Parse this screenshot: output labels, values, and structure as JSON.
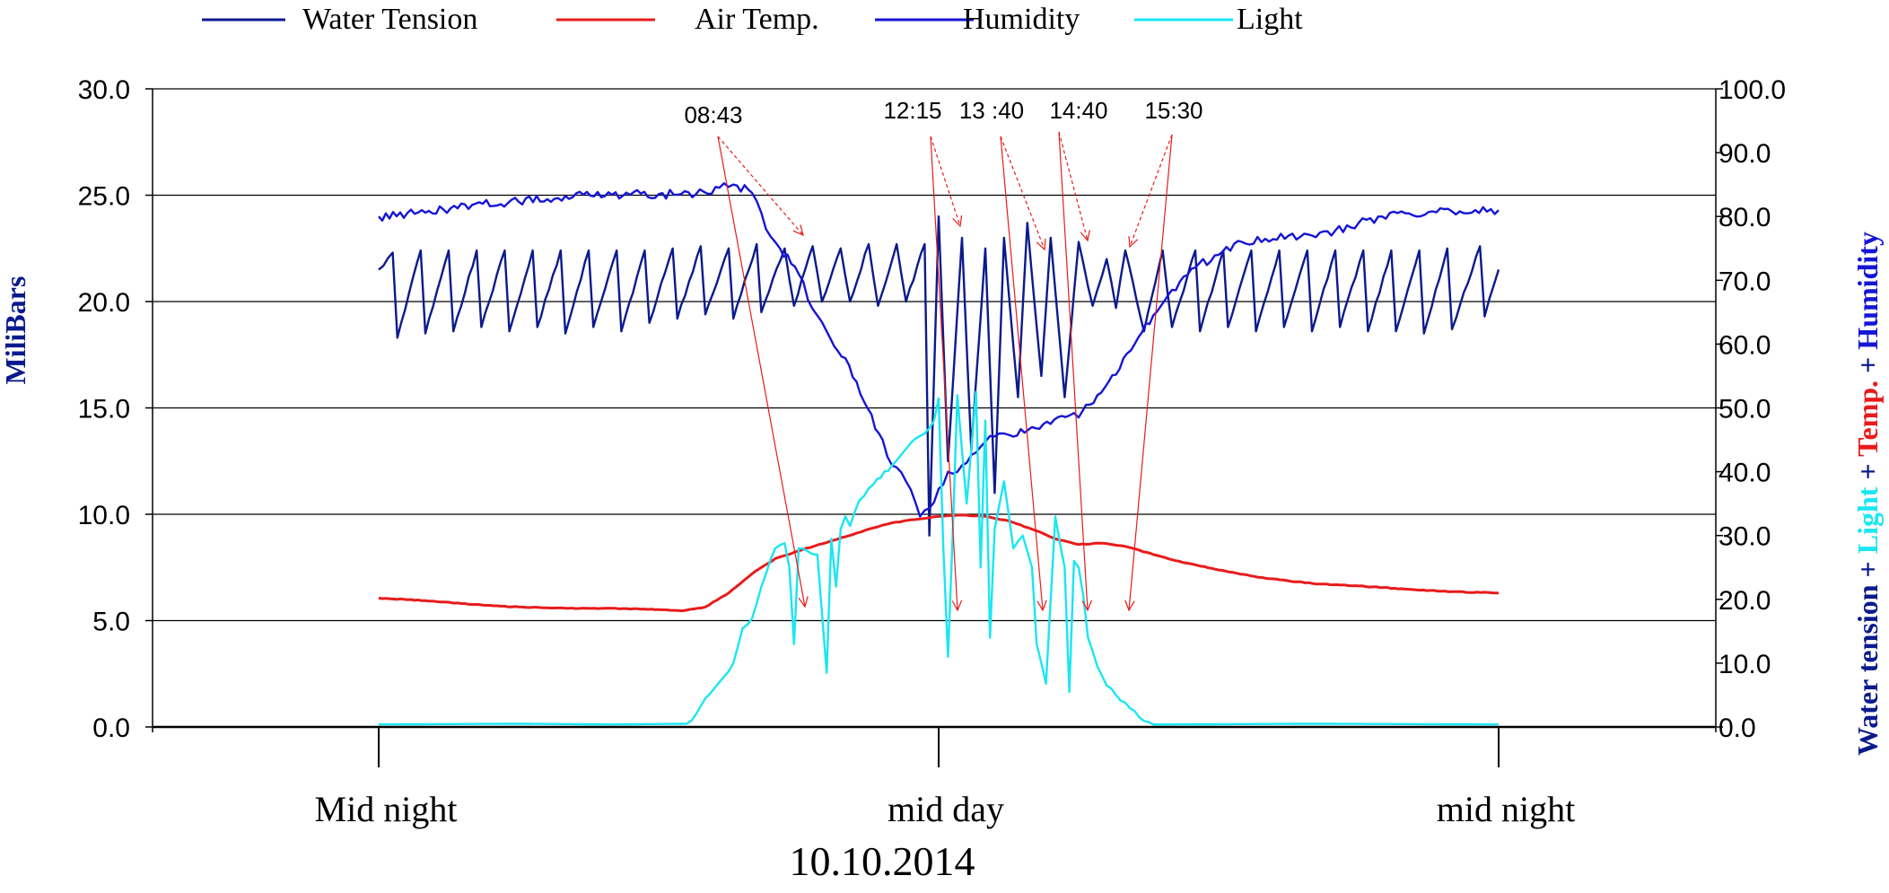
{
  "chart_data": {
    "type": "line",
    "x_date": "10.10.2014",
    "x_tick_labels": [
      "Mid night",
      "mid day",
      "mid night"
    ],
    "ylabel_left": "MiliBars",
    "ylabel_right_parts": [
      {
        "text": "Water tension",
        "color": "#0b1a8c"
      },
      {
        "text": " + ",
        "color": "#0b1a8c"
      },
      {
        "text": "Light",
        "color": "#19e6f2"
      },
      {
        "text": " + ",
        "color": "#0b1a8c"
      },
      {
        "text": "Temp.",
        "color": "#e81b1b"
      },
      {
        "text": " + ",
        "color": "#0b1a8c"
      },
      {
        "text": "Humidity",
        "color": "#1515d6"
      }
    ],
    "y_left": {
      "min": 0,
      "max": 30,
      "ticks": [
        "0.0",
        "5.0",
        "10.0",
        "15.0",
        "20.0",
        "25.0",
        "30.0"
      ]
    },
    "y_right": {
      "min": 0,
      "max": 100,
      "ticks": [
        "0.0",
        "10.0",
        "20.0",
        "30.0",
        "40.0",
        "50.0",
        "60.0",
        "70.0",
        "80.0",
        "90.0",
        "100.0"
      ]
    },
    "grid": "horizontal",
    "legend_position": "top",
    "series": [
      {
        "name": "Water Tension",
        "color": "#0b1a8c",
        "axis": "left",
        "x_hours": [
          0,
          0.3,
          0.4,
          0.9,
          1.0,
          1.5,
          1.6,
          2.1,
          2.2,
          2.7,
          2.8,
          3.3,
          3.4,
          3.9,
          4.0,
          4.5,
          4.6,
          5.1,
          5.2,
          5.7,
          5.8,
          6.3,
          6.4,
          6.9,
          7.0,
          7.5,
          7.6,
          8.1,
          8.2,
          8.7,
          8.9,
          9.3,
          9.5,
          9.9,
          10.1,
          10.5,
          10.7,
          11.1,
          11.3,
          11.7,
          11.8,
          12.0,
          12.2,
          12.5,
          12.7,
          13.0,
          13.2,
          13.4,
          13.7,
          13.9,
          14.2,
          14.4,
          14.7,
          15.0,
          15.3,
          15.6,
          15.8,
          16.0,
          16.4,
          16.8,
          17.0,
          17.5,
          17.6,
          18.1,
          18.2,
          18.7,
          18.8,
          19.3,
          19.4,
          19.9,
          20.0,
          20.5,
          20.6,
          21.1,
          21.2,
          21.7,
          21.8,
          22.3,
          22.4,
          22.9,
          23.0,
          23.6,
          23.7,
          24.0
        ],
        "values": [
          21.5,
          22.3,
          18.3,
          22.4,
          18.5,
          22.4,
          18.6,
          22.4,
          18.8,
          22.4,
          18.6,
          22.4,
          18.8,
          22.4,
          18.5,
          22.4,
          18.8,
          22.4,
          18.6,
          22.4,
          19.0,
          22.5,
          19.2,
          22.6,
          19.4,
          22.5,
          19.2,
          22.7,
          19.5,
          22.5,
          19.8,
          22.6,
          20.0,
          22.5,
          20.0,
          22.7,
          19.8,
          22.7,
          20.0,
          22.7,
          9.0,
          24.0,
          12.5,
          23.0,
          13.0,
          22.5,
          11.0,
          23.0,
          15.5,
          23.7,
          16.5,
          23.0,
          15.5,
          22.8,
          19.8,
          22.0,
          19.7,
          22.4,
          18.6,
          22.4,
          18.8,
          22.4,
          18.6,
          22.4,
          18.8,
          22.4,
          18.6,
          22.4,
          18.8,
          22.4,
          18.6,
          22.4,
          18.8,
          22.4,
          18.6,
          22.4,
          18.6,
          22.4,
          18.5,
          22.5,
          18.7,
          22.6,
          19.3,
          21.5
        ]
      },
      {
        "name": "Air Temp.",
        "color": "#e81b1b",
        "axis": "right",
        "x_hours": [
          0,
          1,
          2,
          3,
          4,
          5,
          6,
          6.5,
          7,
          7.5,
          8,
          8.5,
          9,
          9.5,
          10,
          10.5,
          11,
          11.5,
          12,
          12.5,
          13,
          13.5,
          14,
          14.5,
          15,
          15.5,
          16,
          17,
          18,
          19,
          20,
          21,
          22,
          23,
          24
        ],
        "values": [
          20.2,
          19.8,
          19.2,
          18.8,
          18.6,
          18.6,
          18.4,
          18.2,
          18.8,
          21.0,
          24.0,
          26.4,
          27.6,
          28.7,
          29.8,
          31.0,
          32.0,
          32.5,
          33.0,
          33.2,
          33.0,
          32.3,
          31.0,
          29.5,
          28.6,
          28.8,
          28.3,
          26.2,
          24.6,
          23.3,
          22.5,
          22.1,
          21.6,
          21.2,
          21.0
        ]
      },
      {
        "name": "Humidity",
        "color": "#1515d6",
        "axis": "right",
        "x_hours": [
          0,
          1,
          2,
          3,
          4,
          5,
          6,
          6.8,
          7.3,
          7.6,
          8.0,
          8.3,
          8.6,
          9.0,
          9.3,
          9.6,
          10.0,
          10.4,
          10.8,
          11.0,
          11.3,
          11.6,
          11.9,
          12.2,
          12.5,
          12.8,
          13.0,
          13.3,
          13.6,
          14.0,
          14.4,
          14.8,
          15.0,
          15.4,
          15.8,
          16.2,
          16.6,
          17.0,
          17.5,
          18.0,
          18.5,
          19.0,
          19.5,
          20.0,
          20.5,
          21.0,
          21.5,
          22.0,
          22.5,
          23.0,
          23.5,
          24.0
        ],
        "values": [
          80.0,
          80.6,
          81.8,
          82.3,
          83.2,
          83.4,
          83.5,
          83.5,
          84.5,
          85.0,
          83.7,
          78.0,
          75.0,
          71.0,
          65.5,
          62.0,
          57.8,
          51.0,
          45.0,
          41.0,
          38.5,
          33.0,
          35.2,
          40.0,
          41.0,
          43.0,
          44.7,
          46.0,
          45.5,
          47.0,
          47.5,
          48.8,
          48.5,
          52.0,
          55.2,
          60.0,
          64.5,
          68.5,
          72.0,
          74.0,
          76.0,
          76.5,
          77.0,
          77.0,
          77.8,
          79.0,
          80.0,
          80.5,
          80.7,
          80.8,
          81.0,
          81.0
        ]
      },
      {
        "name": "Light",
        "color": "#19e6f2",
        "axis": "right",
        "x_hours": [
          0,
          3,
          5,
          6.6,
          6.8,
          7.0,
          7.3,
          7.6,
          7.8,
          8.0,
          8.2,
          8.5,
          8.7,
          8.8,
          8.9,
          9.0,
          9.2,
          9.4,
          9.6,
          9.7,
          9.8,
          9.9,
          10.0,
          10.1,
          10.3,
          10.6,
          11.0,
          11.4,
          11.7,
          11.9,
          12.0,
          12.1,
          12.2,
          12.3,
          12.4,
          12.6,
          12.8,
          12.9,
          13.0,
          13.1,
          13.2,
          13.4,
          13.6,
          13.8,
          14.0,
          14.1,
          14.2,
          14.3,
          14.5,
          14.7,
          14.8,
          14.9,
          15.0,
          15.1,
          15.2,
          15.4,
          15.6,
          15.8,
          16.0,
          16.3,
          16.6,
          17,
          20,
          24
        ],
        "values": [
          0.4,
          0.5,
          0.4,
          0.5,
          2.0,
          4.5,
          7.0,
          10.0,
          15.5,
          17.0,
          22.0,
          28.0,
          28.8,
          25.0,
          13.0,
          28.0,
          27.5,
          27.0,
          8.5,
          29.5,
          22.0,
          31.0,
          33.0,
          31.5,
          35.5,
          38.0,
          41.0,
          44.5,
          46.0,
          48.0,
          51.5,
          28.0,
          11.0,
          30.0,
          52.0,
          35.0,
          52.5,
          25.0,
          48.0,
          14.0,
          31.0,
          38.5,
          28.0,
          30.0,
          25.0,
          13.0,
          10.0,
          6.8,
          33.0,
          25.0,
          5.5,
          26.0,
          25.0,
          20.5,
          14.0,
          9.5,
          6.5,
          5.0,
          3.8,
          1.5,
          0.4,
          0.4,
          0.5,
          0.4
        ]
      }
    ],
    "annotations": [
      {
        "text": "08:43"
      },
      {
        "text": "12:15"
      },
      {
        "text": "13 :40"
      },
      {
        "text": "14:40"
      },
      {
        "text": "15:30"
      }
    ]
  }
}
